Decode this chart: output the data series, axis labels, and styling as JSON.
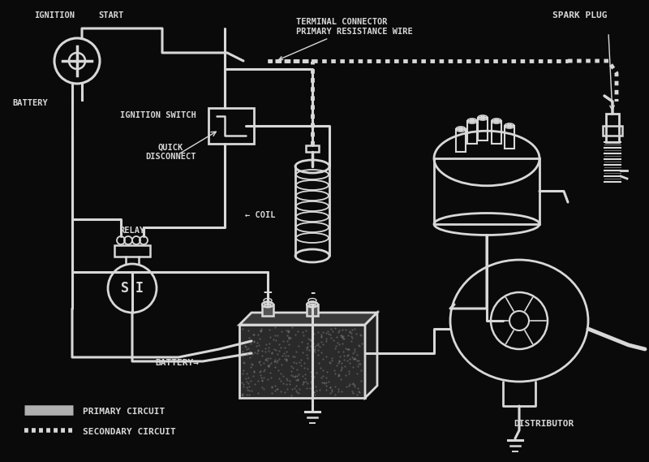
{
  "bg_color": "#0a0a0a",
  "line_color": "#d8d8d8",
  "text_color": "#d8d8d8",
  "labels": {
    "ignition": "IGNITION",
    "start": "START",
    "ignition_switch": "IGNITION SWITCH",
    "battery_left": "BATTERY",
    "terminal_connector": "TERMINAL CONNECTOR",
    "primary_resistance": "PRIMARY RESISTANCE WIRE",
    "quick_disconnect": "QUICK\nDISCONNECT",
    "relay": "RELAY",
    "coil": "COIL",
    "spark_plug": "SPARK PLUG",
    "battery_main": "BATTERY",
    "distributor": "DISTRIBUTOR",
    "primary_circuit": "PRIMARY CIRCUIT",
    "secondary_circuit": "SECONDARY CIRCUIT"
  },
  "font_size": 7.5,
  "lw": 2.2,
  "lw_sec": 3.0
}
